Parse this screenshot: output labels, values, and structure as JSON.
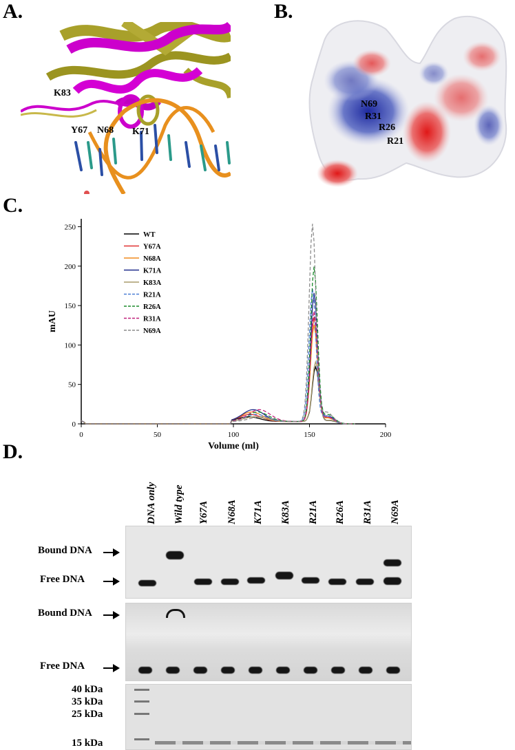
{
  "panels": {
    "a": {
      "letter": "A.",
      "labels": [
        "K83",
        "Y67",
        "N68",
        "K71"
      ]
    },
    "b": {
      "letter": "B.",
      "labels": [
        "N69",
        "R31",
        "R26",
        "R21"
      ]
    },
    "c": {
      "letter": "C."
    },
    "d": {
      "letter": "D."
    }
  },
  "chart_data": {
    "type": "line",
    "title": "",
    "xlabel": "Volume (ml)",
    "ylabel": "mAU",
    "xlim": [
      0,
      200
    ],
    "ylim": [
      0,
      260
    ],
    "x_ticks": [
      0,
      50,
      100,
      150,
      200
    ],
    "y_ticks": [
      0,
      50,
      100,
      150,
      200,
      250
    ],
    "legend_position": "top-left",
    "series": [
      {
        "name": "WT",
        "color": "#000000",
        "dashed": false,
        "peak_height": 72,
        "peak_x": 154
      },
      {
        "name": "Y67A",
        "color": "#e03030",
        "dashed": false,
        "peak_height": 135,
        "peak_x": 153
      },
      {
        "name": "N68A",
        "color": "#f08a1c",
        "dashed": false,
        "peak_height": 125,
        "peak_x": 153
      },
      {
        "name": "K71A",
        "color": "#1f2a8a",
        "dashed": false,
        "peak_height": 165,
        "peak_x": 153
      },
      {
        "name": "K83A",
        "color": "#a89a6a",
        "dashed": false,
        "peak_height": 78,
        "peak_x": 154
      },
      {
        "name": "R21A",
        "color": "#4a7fd4",
        "dashed": true,
        "peak_height": 170,
        "peak_x": 152
      },
      {
        "name": "R26A",
        "color": "#1a8a2a",
        "dashed": true,
        "peak_height": 198,
        "peak_x": 153
      },
      {
        "name": "R31A",
        "color": "#c0207a",
        "dashed": true,
        "peak_height": 142,
        "peak_x": 153
      },
      {
        "name": "N69A",
        "color": "#8c8c8c",
        "dashed": true,
        "peak_height": 252,
        "peak_x": 152
      }
    ]
  },
  "gel": {
    "lanes": [
      "DNA only",
      "Wild type",
      "Y67A",
      "N68A",
      "K71A",
      "K83A",
      "R21A",
      "R26A",
      "R31A",
      "N69A"
    ],
    "bound_label": "Bound DNA",
    "free_label": "Free DNA",
    "markers": [
      "40 kDa",
      "35 kDa",
      "25 kDa",
      "15 kDa"
    ]
  }
}
